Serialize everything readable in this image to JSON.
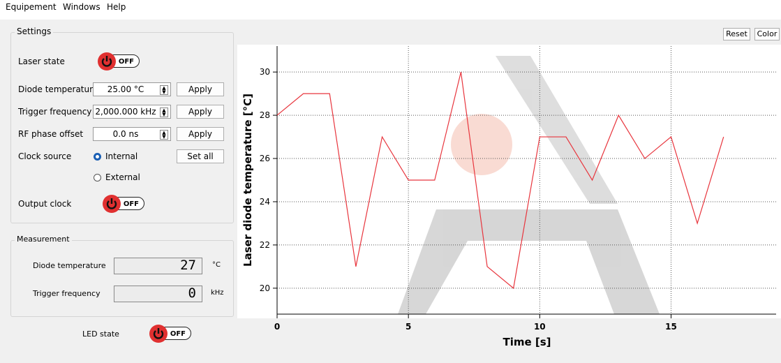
{
  "menu": [
    "Equipement",
    "Windows",
    "Help"
  ],
  "settings": {
    "title": "Settings",
    "laser_state": {
      "label": "Laser state",
      "switch": "OFF"
    },
    "diode_temperature": {
      "label": "Diode temperature",
      "value": "25.00 °C",
      "button": "Apply"
    },
    "trigger_frequency": {
      "label": "Trigger frequency",
      "value": "2,000.000 kHz",
      "button": "Apply"
    },
    "rf_phase_offset": {
      "label": "RF phase offset",
      "value": "0.0 ns",
      "button": "Apply"
    },
    "clock_source": {
      "label": "Clock source",
      "options": [
        "Internal",
        "External"
      ],
      "selected_index": 0,
      "button": "Set all"
    },
    "output_clock": {
      "label": "Output clock",
      "switch": "OFF"
    }
  },
  "measurement": {
    "title": "Measurement",
    "rows": [
      {
        "label": "Diode temperature",
        "value": "27",
        "unit": "°C"
      },
      {
        "label": "Trigger frequency",
        "value": "0",
        "unit": "kHz"
      }
    ]
  },
  "led_state": {
    "label": "LED state",
    "switch": "OFF"
  },
  "toolbar": [
    "Reset",
    "Color"
  ],
  "chart_data": {
    "type": "line",
    "xlabel": "Time [s]",
    "ylabel": "Laser diode temperature [°C]",
    "x": [
      0,
      1,
      2,
      3,
      4,
      5,
      6,
      7,
      8,
      9,
      10,
      11,
      12,
      13,
      14,
      15,
      16,
      17
    ],
    "values": [
      28,
      29,
      29,
      21,
      27,
      25,
      25,
      30,
      21,
      20,
      27,
      27,
      25,
      28,
      26,
      27,
      23,
      27
    ],
    "color": "#e8353d",
    "xlim": [
      0,
      19
    ],
    "ylim": [
      18.8,
      31.2
    ],
    "xticks": [
      0,
      5,
      10,
      15
    ],
    "yticks": [
      20,
      22,
      24,
      26,
      28,
      30
    ],
    "grid": true
  }
}
